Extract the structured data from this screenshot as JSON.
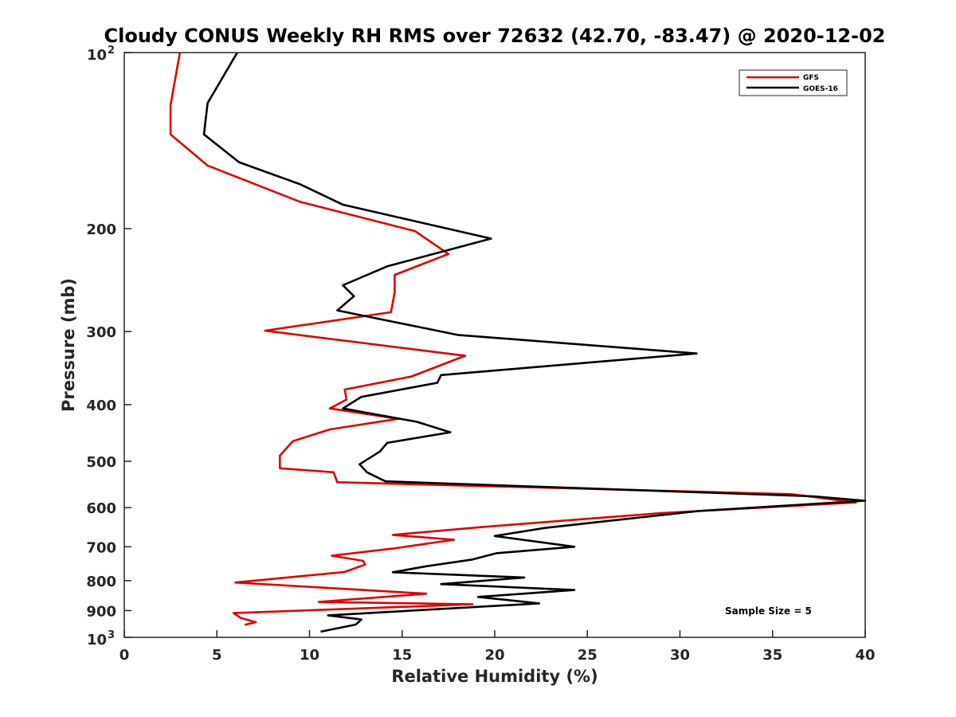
{
  "chart_data": {
    "type": "line",
    "title": "Cloudy CONUS Weekly RH RMS over 72632 (42.70, -83.47) @ 2020-12-02",
    "xlabel": "Relative Humidity (%)",
    "ylabel": "Pressure (mb)",
    "xlim": [
      0,
      40
    ],
    "ylim": [
      100,
      1000
    ],
    "y_scale": "log",
    "y_reversed": true,
    "grid": false,
    "legend_position": "top-right",
    "annotation": "Sample Size = 5",
    "x_ticks": [
      {
        "value": 0,
        "label": "0"
      },
      {
        "value": 5,
        "label": "5"
      },
      {
        "value": 10,
        "label": "10"
      },
      {
        "value": 15,
        "label": "15"
      },
      {
        "value": 20,
        "label": "20"
      },
      {
        "value": 25,
        "label": "25"
      },
      {
        "value": 30,
        "label": "30"
      },
      {
        "value": 35,
        "label": "35"
      },
      {
        "value": 40,
        "label": "40"
      }
    ],
    "y_ticks": [
      {
        "value": 100,
        "label": "10",
        "sup": "2"
      },
      {
        "value": 200,
        "label": "200",
        "sup": ""
      },
      {
        "value": 300,
        "label": "300",
        "sup": ""
      },
      {
        "value": 400,
        "label": "400",
        "sup": ""
      },
      {
        "value": 500,
        "label": "500",
        "sup": ""
      },
      {
        "value": 600,
        "label": "600",
        "sup": ""
      },
      {
        "value": 700,
        "label": "700",
        "sup": ""
      },
      {
        "value": 800,
        "label": "800",
        "sup": ""
      },
      {
        "value": 900,
        "label": "900",
        "sup": ""
      },
      {
        "value": 1000,
        "label": "10",
        "sup": "3"
      }
    ],
    "series": [
      {
        "name": "GFS",
        "color": "#e00000",
        "x": [
          3.0,
          2.5,
          2.5,
          4.5,
          9.5,
          15.7,
          17.5,
          14.6,
          14.6,
          14.4,
          7.6,
          18.4,
          15.5,
          11.9,
          12.0,
          11.1,
          14.8,
          11.1,
          9.1,
          8.4,
          8.4,
          11.3,
          11.5,
          36.0,
          39.5,
          29.0,
          19.5,
          14.5,
          17.8,
          14.5,
          11.2,
          12.9,
          13.0,
          11.9,
          6.0,
          16.3,
          10.5,
          18.8,
          5.9,
          6.3,
          7.1,
          6.5
        ],
        "y": [
          100,
          123,
          138,
          156,
          180,
          202,
          221,
          240,
          257,
          278,
          299,
          330,
          358,
          377,
          392,
          406,
          423,
          441,
          462,
          489,
          514,
          522,
          543,
          569,
          588,
          613,
          647,
          668,
          681,
          705,
          725,
          740,
          751,
          773,
          806,
          842,
          870,
          878,
          909,
          927,
          942,
          952
        ]
      },
      {
        "name": "GOES-16",
        "color": "#000000",
        "x": [
          6.1,
          4.5,
          4.3,
          6.2,
          9.5,
          11.8,
          19.8,
          14.2,
          11.8,
          12.4,
          11.5,
          18.0,
          30.9,
          17.1,
          16.9,
          12.8,
          11.8,
          15.8,
          17.6,
          14.2,
          13.8,
          12.7,
          13.1,
          14.1,
          37.2,
          40.0,
          31.0,
          22.7,
          20.0,
          24.3,
          20.1,
          18.8,
          16.3,
          14.5,
          21.6,
          17.1,
          24.3,
          19.1,
          22.4,
          11.0,
          12.8,
          12.5,
          10.6
        ],
        "y": [
          100,
          122,
          138,
          154,
          168,
          182,
          208,
          232,
          250,
          261,
          276,
          304,
          327,
          356,
          367,
          388,
          406,
          428,
          446,
          465,
          481,
          506,
          522,
          541,
          574,
          584,
          608,
          650,
          671,
          700,
          718,
          736,
          756,
          774,
          790,
          811,
          830,
          853,
          875,
          917,
          932,
          951,
          978
        ]
      }
    ]
  }
}
